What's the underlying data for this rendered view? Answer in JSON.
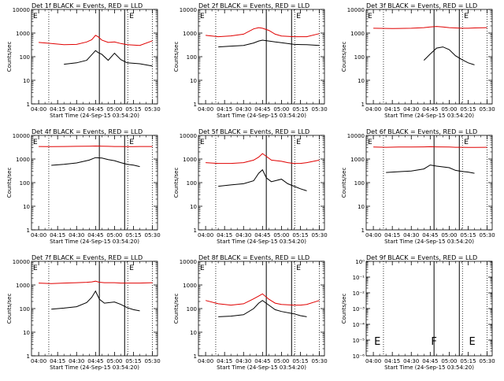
{
  "figure": {
    "xlabel": "Start Time (24-Sep-15 03:54:20)",
    "ylabel": "Counts/sec",
    "x_tick_labels": [
      "04:00",
      "04:15",
      "04:30",
      "04:45",
      "05:00",
      "05:15",
      "05:30"
    ],
    "y_tick_labels": [
      "1",
      "10",
      "100",
      "1000",
      "10000"
    ],
    "y_tick_labels_empty_panel": [
      "10⁰",
      "10⁻¹",
      "10⁻²",
      "10⁻³",
      "10⁻⁴",
      "10⁻⁵",
      "10⁻⁶"
    ],
    "markers": [
      "E",
      "F",
      "E"
    ]
  },
  "colors": {
    "events": "#000000",
    "lld": "#e00000",
    "axes": "#000000"
  },
  "chart_data": [
    {
      "type": "line",
      "title": "Det 1f BLACK = Events, RED = LLD",
      "xlim": [
        "03:54:20",
        "05:34"
      ],
      "ylim": [
        1,
        10000
      ],
      "yscale": "log",
      "x": [
        "04:00",
        "04:10",
        "04:20",
        "04:30",
        "04:38",
        "04:42",
        "04:45",
        "04:47",
        "04:50",
        "04:55",
        "05:00",
        "05:05",
        "05:10",
        "05:20",
        "05:30"
      ],
      "series": [
        {
          "name": "BLACK = Events",
          "values": [
            null,
            null,
            48,
            55,
            70,
            120,
            180,
            150,
            125,
            70,
            140,
            75,
            55,
            50,
            40
          ]
        },
        {
          "name": "RED = LLD",
          "values": [
            400,
            360,
            320,
            330,
            420,
            520,
            800,
            700,
            500,
            400,
            420,
            360,
            320,
            300,
            470
          ]
        }
      ]
    },
    {
      "type": "line",
      "title": "Det 2f BLACK = Events, RED = LLD",
      "xlim": [
        "03:54:20",
        "05:34"
      ],
      "ylim": [
        1,
        10000
      ],
      "yscale": "log",
      "x": [
        "04:00",
        "04:10",
        "04:20",
        "04:30",
        "04:38",
        "04:42",
        "04:45",
        "04:50",
        "04:55",
        "05:00",
        "05:10",
        "05:20",
        "05:30"
      ],
      "series": [
        {
          "name": "BLACK = Events",
          "values": [
            null,
            260,
            280,
            300,
            380,
            460,
            500,
            460,
            420,
            390,
            330,
            320,
            300
          ]
        },
        {
          "name": "RED = LLD",
          "values": [
            800,
            700,
            760,
            900,
            1500,
            1700,
            1600,
            1300,
            900,
            750,
            700,
            700,
            950
          ]
        }
      ]
    },
    {
      "type": "line",
      "title": "Det 3f BLACK = Events, RED = LLD",
      "xlim": [
        "03:54:20",
        "05:34"
      ],
      "ylim": [
        1,
        10000
      ],
      "yscale": "log",
      "x": [
        "04:00",
        "04:15",
        "04:30",
        "04:40",
        "04:45",
        "04:50",
        "04:55",
        "05:00",
        "05:05",
        "05:10",
        "05:15",
        "05:20",
        "05:30"
      ],
      "series": [
        {
          "name": "BLACK = Events",
          "values": [
            null,
            null,
            null,
            70,
            130,
            230,
            260,
            200,
            110,
            75,
            55,
            45,
            null
          ]
        },
        {
          "name": "RED = LLD",
          "values": [
            1600,
            1550,
            1600,
            1700,
            1800,
            1900,
            1800,
            1700,
            1650,
            1600,
            1600,
            1650,
            1700
          ]
        }
      ]
    },
    {
      "type": "line",
      "title": "Det 4f BLACK = Events, RED = LLD",
      "xlim": [
        "03:54:20",
        "05:34"
      ],
      "ylim": [
        1,
        10000
      ],
      "yscale": "log",
      "x": [
        "04:00",
        "04:10",
        "04:20",
        "04:30",
        "04:40",
        "04:45",
        "04:50",
        "04:55",
        "05:00",
        "05:05",
        "05:10",
        "05:15",
        "05:20",
        "05:30"
      ],
      "series": [
        {
          "name": "BLACK = Events",
          "values": [
            null,
            540,
            600,
            680,
            900,
            1150,
            1100,
            950,
            850,
            700,
            600,
            550,
            480,
            null
          ]
        },
        {
          "name": "RED = LLD",
          "values": [
            3400,
            3350,
            3400,
            3450,
            3500,
            3550,
            3500,
            3450,
            3400,
            3400,
            3350,
            3350,
            3400,
            3400
          ]
        }
      ]
    },
    {
      "type": "line",
      "title": "Det 5f BLACK = Events, RED = LLD",
      "xlim": [
        "03:54:20",
        "05:34"
      ],
      "ylim": [
        1,
        10000
      ],
      "yscale": "log",
      "x": [
        "04:00",
        "04:10",
        "04:20",
        "04:30",
        "04:38",
        "04:42",
        "04:45",
        "04:48",
        "04:52",
        "05:00",
        "05:05",
        "05:10",
        "05:15",
        "05:20",
        "05:30"
      ],
      "series": [
        {
          "name": "BLACK = Events",
          "values": [
            null,
            70,
            80,
            90,
            120,
            250,
            350,
            160,
            110,
            140,
            90,
            70,
            55,
            45,
            null
          ]
        },
        {
          "name": "RED = LLD",
          "values": [
            700,
            650,
            650,
            700,
            900,
            1200,
            1700,
            1300,
            900,
            800,
            700,
            650,
            650,
            700,
            900
          ]
        }
      ]
    },
    {
      "type": "line",
      "title": "Det 6f BLACK = Events, RED = LLD",
      "xlim": [
        "03:54:20",
        "05:34"
      ],
      "ylim": [
        1,
        10000
      ],
      "yscale": "log",
      "x": [
        "04:00",
        "04:10",
        "04:20",
        "04:30",
        "04:40",
        "04:45",
        "04:50",
        "05:00",
        "05:05",
        "05:10",
        "05:15",
        "05:20",
        "05:30"
      ],
      "series": [
        {
          "name": "BLACK = Events",
          "values": [
            null,
            270,
            290,
            310,
            380,
            560,
            500,
            430,
            330,
            300,
            280,
            250,
            null
          ]
        },
        {
          "name": "RED = LLD",
          "values": [
            3200,
            3150,
            3200,
            3200,
            3250,
            3300,
            3250,
            3200,
            3150,
            3150,
            3100,
            3100,
            3150
          ]
        }
      ]
    },
    {
      "type": "line",
      "title": "Det 7f BLACK = Events, RED = LLD",
      "xlim": [
        "03:54:20",
        "05:34"
      ],
      "ylim": [
        1,
        10000
      ],
      "yscale": "log",
      "x": [
        "04:00",
        "04:10",
        "04:20",
        "04:30",
        "04:38",
        "04:42",
        "04:45",
        "04:48",
        "04:52",
        "05:00",
        "05:05",
        "05:10",
        "05:15",
        "05:20",
        "05:30"
      ],
      "series": [
        {
          "name": "BLACK = Events",
          "values": [
            null,
            95,
            105,
            120,
            180,
            300,
            550,
            250,
            170,
            190,
            150,
            110,
            90,
            80,
            null
          ]
        },
        {
          "name": "RED = LLD",
          "values": [
            1200,
            1150,
            1200,
            1250,
            1300,
            1350,
            1450,
            1300,
            1250,
            1250,
            1200,
            1200,
            1200,
            1200,
            1250
          ]
        }
      ]
    },
    {
      "type": "line",
      "title": "Det 8f BLACK = Events, RED = LLD",
      "xlim": [
        "03:54:20",
        "05:34"
      ],
      "ylim": [
        1,
        10000
      ],
      "yscale": "log",
      "x": [
        "04:00",
        "04:10",
        "04:20",
        "04:30",
        "04:38",
        "04:42",
        "04:45",
        "04:50",
        "04:55",
        "05:00",
        "05:10",
        "05:15",
        "05:20",
        "05:30"
      ],
      "series": [
        {
          "name": "BLACK = Events",
          "values": [
            null,
            45,
            48,
            55,
            100,
            170,
            220,
            140,
            90,
            75,
            60,
            50,
            45,
            null
          ]
        },
        {
          "name": "RED = LLD",
          "values": [
            220,
            160,
            140,
            160,
            260,
            340,
            420,
            250,
            170,
            150,
            140,
            140,
            150,
            220
          ]
        }
      ]
    },
    {
      "type": "line",
      "title": "Det 9f BLACK = Events, RED = LLD",
      "xlim": [
        "03:54:20",
        "05:34"
      ],
      "ylim": [
        1e-06,
        1
      ],
      "yscale": "log",
      "x": [],
      "series": []
    }
  ]
}
